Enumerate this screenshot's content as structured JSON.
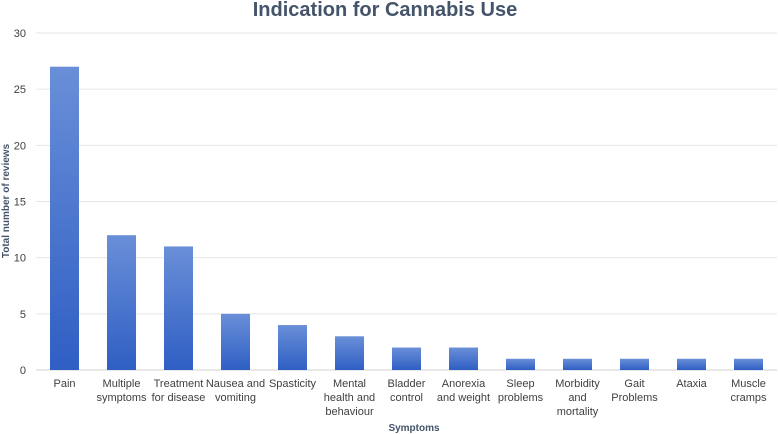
{
  "chart_data": {
    "type": "bar",
    "title": "Indication for Cannabis Use",
    "xlabel": "Symptoms",
    "ylabel": "Total number of reviews",
    "ylim": [
      0,
      30
    ],
    "yticks": [
      0,
      5,
      10,
      15,
      20,
      25,
      30
    ],
    "grid": true,
    "categories": [
      [
        "Pain"
      ],
      [
        "Multiple",
        "symptoms"
      ],
      [
        "Treatment",
        "for disease"
      ],
      [
        "Nausea and",
        "vomiting"
      ],
      [
        "Spasticity"
      ],
      [
        "Mental",
        "health and",
        "behaviour"
      ],
      [
        "Bladder",
        "control"
      ],
      [
        "Anorexia",
        "and weight"
      ],
      [
        "Sleep",
        "problems"
      ],
      [
        "Morbidity",
        "and",
        "mortality"
      ],
      [
        "Gait",
        "Problems"
      ],
      [
        "Ataxia"
      ],
      [
        "Muscle",
        "cramps"
      ]
    ],
    "values": [
      27,
      12,
      11,
      5,
      4,
      3,
      2,
      2,
      1,
      1,
      1,
      1,
      1
    ],
    "colors": {
      "bar_top": "#6a8fd8",
      "bar_bottom": "#2f5fc4",
      "title": "#44546a"
    }
  }
}
